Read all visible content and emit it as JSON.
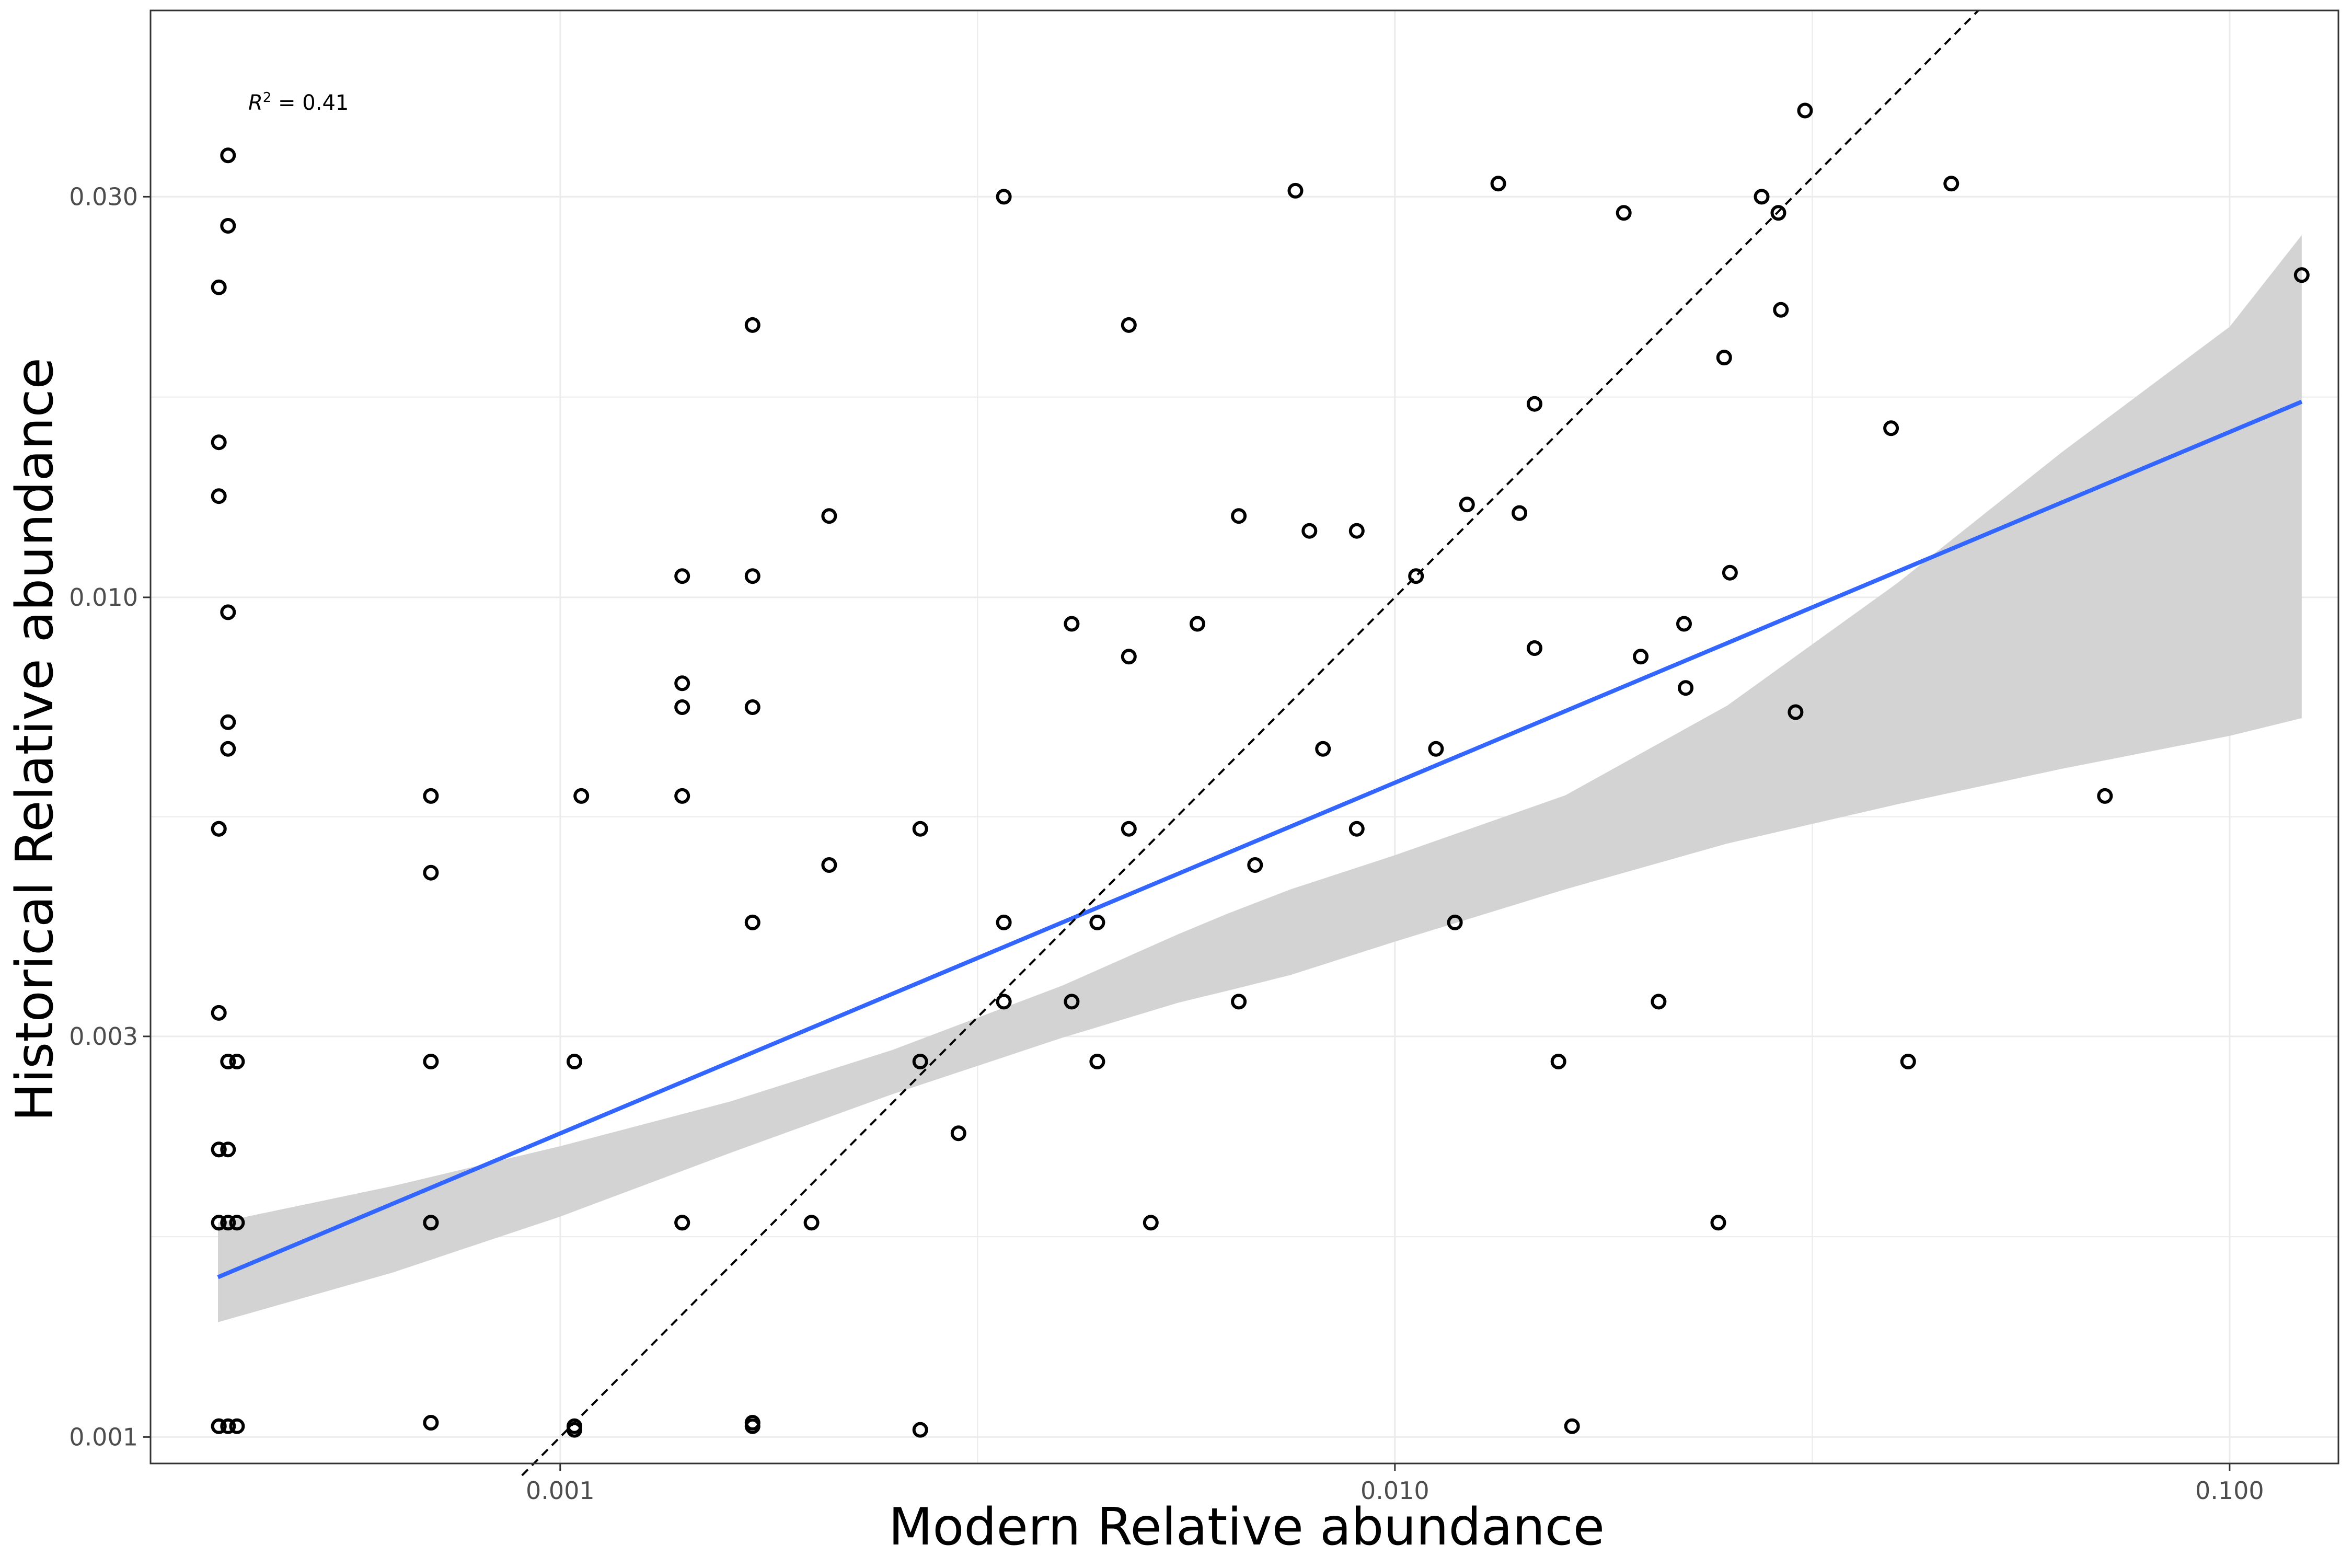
{
  "chart_data": {
    "type": "scatter",
    "title": "",
    "xlabel": "Modern Relative abundance",
    "ylabel": "Historical Relative abundance",
    "x_scale": "log10",
    "y_scale": "log10",
    "xlim": [
      0.000323,
      0.135
    ],
    "ylim": [
      0.00093,
      0.05
    ],
    "x_ticks": [
      0.001,
      0.01,
      0.1
    ],
    "x_tick_labels": [
      "0.001",
      "0.010",
      "0.100"
    ],
    "y_ticks": [
      0.001,
      0.003,
      0.01,
      0.03
    ],
    "y_tick_labels": [
      "0.001",
      "0.003",
      "0.010",
      "0.030"
    ],
    "grid": true,
    "annotation": {
      "text": "R",
      "superscript": "2",
      "suffix": " = 0.41"
    },
    "colors": {
      "fit_line": "#3366FF",
      "ci_band": "#D3D3D3",
      "points": "#000000",
      "identity_line": "#000000",
      "grid": "#EBEBEB"
    },
    "fit_line": {
      "x": [
        0.000389,
        0.122
      ],
      "y": [
        0.00155,
        0.0171
      ]
    },
    "confidence_band": {
      "x": [
        0.000389,
        0.00063,
        0.001,
        0.0016,
        0.0025,
        0.004,
        0.0055,
        0.0063,
        0.0075,
        0.01,
        0.016,
        0.025,
        0.04,
        0.063,
        0.1,
        0.122
      ],
      "lower": [
        0.00137,
        0.00157,
        0.00183,
        0.00218,
        0.00256,
        0.00299,
        0.00329,
        0.0034,
        0.00355,
        0.00389,
        0.00449,
        0.00509,
        0.00567,
        0.00625,
        0.00684,
        0.00718
      ],
      "upper": [
        0.0018,
        0.00199,
        0.00222,
        0.00251,
        0.00289,
        0.00345,
        0.00397,
        0.0042,
        0.00449,
        0.00493,
        0.00581,
        0.00743,
        0.0104,
        0.0149,
        0.021,
        0.027
      ]
    },
    "identity_line": {
      "x": [
        0.0009,
        0.05
      ],
      "y": [
        0.0009,
        0.05
      ]
    },
    "points": [
      [
        0.00039,
        0.0234
      ],
      [
        0.0004,
        0.0336
      ],
      [
        0.0004,
        0.0277
      ],
      [
        0.00039,
        0.0153
      ],
      [
        0.00039,
        0.0132
      ],
      [
        0.0004,
        0.0096
      ],
      [
        0.0004,
        0.0071
      ],
      [
        0.0004,
        0.0066
      ],
      [
        0.00039,
        0.0053
      ],
      [
        0.00039,
        0.0053
      ],
      [
        0.00039,
        0.0032
      ],
      [
        0.0004,
        0.0028
      ],
      [
        0.00041,
        0.0028
      ],
      [
        0.00039,
        0.0022
      ],
      [
        0.0004,
        0.0022
      ],
      [
        0.00039,
        0.0022
      ],
      [
        0.00039,
        0.0018
      ],
      [
        0.0004,
        0.0018
      ],
      [
        0.00041,
        0.0018
      ],
      [
        0.00039,
        0.0018
      ],
      [
        0.00039,
        0.00103
      ],
      [
        0.0004,
        0.00103
      ],
      [
        0.00041,
        0.00103
      ],
      [
        0.00039,
        0.00103
      ],
      [
        0.0007,
        0.0058
      ],
      [
        0.0007,
        0.0047
      ],
      [
        0.0007,
        0.0028
      ],
      [
        0.0007,
        0.0018
      ],
      [
        0.0007,
        0.0018
      ],
      [
        0.0007,
        0.00104
      ],
      [
        0.00106,
        0.0058
      ],
      [
        0.00104,
        0.0028
      ],
      [
        0.00104,
        0.00103
      ],
      [
        0.00104,
        0.00102
      ],
      [
        0.0014,
        0.0106
      ],
      [
        0.0014,
        0.0079
      ],
      [
        0.0014,
        0.0074
      ],
      [
        0.0014,
        0.0058
      ],
      [
        0.0014,
        0.0018
      ],
      [
        0.0014,
        0.0018
      ],
      [
        0.0017,
        0.0211
      ],
      [
        0.0017,
        0.0106
      ],
      [
        0.0017,
        0.0074
      ],
      [
        0.0017,
        0.0041
      ],
      [
        0.0017,
        0.00104
      ],
      [
        0.0017,
        0.00103
      ],
      [
        0.0021,
        0.0125
      ],
      [
        0.0021,
        0.0048
      ],
      [
        0.002,
        0.0018
      ],
      [
        0.0027,
        0.0053
      ],
      [
        0.0027,
        0.0028
      ],
      [
        0.0027,
        0.00102
      ],
      [
        0.003,
        0.0023
      ],
      [
        0.0034,
        0.03
      ],
      [
        0.0034,
        0.0041
      ],
      [
        0.0034,
        0.0033
      ],
      [
        0.0041,
        0.0093
      ],
      [
        0.0041,
        0.0033
      ],
      [
        0.0044,
        0.0041
      ],
      [
        0.0044,
        0.0028
      ],
      [
        0.0048,
        0.0211
      ],
      [
        0.0048,
        0.0085
      ],
      [
        0.0048,
        0.0053
      ],
      [
        0.0051,
        0.0018
      ],
      [
        0.0058,
        0.0093
      ],
      [
        0.0065,
        0.0125
      ],
      [
        0.0065,
        0.0033
      ],
      [
        0.0068,
        0.0048
      ],
      [
        0.0076,
        0.0305
      ],
      [
        0.0079,
        0.012
      ],
      [
        0.0082,
        0.0066
      ],
      [
        0.009,
        0.012
      ],
      [
        0.009,
        0.0053
      ],
      [
        0.0106,
        0.0106
      ],
      [
        0.0112,
        0.0066
      ],
      [
        0.0118,
        0.0041
      ],
      [
        0.0122,
        0.0129
      ],
      [
        0.0133,
        0.0311
      ],
      [
        0.0141,
        0.0126
      ],
      [
        0.0147,
        0.017
      ],
      [
        0.0147,
        0.0087
      ],
      [
        0.0157,
        0.0028
      ],
      [
        0.0163,
        0.00103
      ],
      [
        0.0188,
        0.0287
      ],
      [
        0.0197,
        0.0085
      ],
      [
        0.0207,
        0.0033
      ],
      [
        0.0222,
        0.0093
      ],
      [
        0.0223,
        0.0078
      ],
      [
        0.0244,
        0.0018
      ],
      [
        0.0248,
        0.0193
      ],
      [
        0.0252,
        0.0107
      ],
      [
        0.0275,
        0.03
      ],
      [
        0.0288,
        0.0287
      ],
      [
        0.029,
        0.022
      ],
      [
        0.0302,
        0.0073
      ],
      [
        0.031,
        0.038
      ],
      [
        0.0393,
        0.0159
      ],
      [
        0.0412,
        0.0028
      ],
      [
        0.0464,
        0.0311
      ],
      [
        0.0709,
        0.0058
      ],
      [
        0.122,
        0.0242
      ]
    ]
  }
}
